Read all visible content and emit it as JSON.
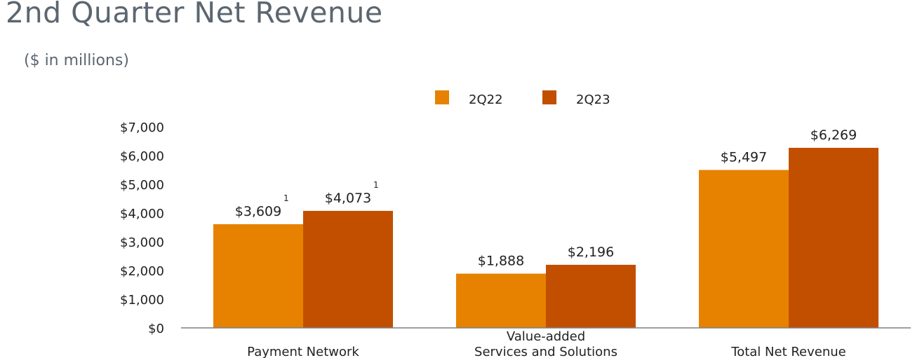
{
  "chart_data": {
    "type": "bar",
    "title": "2nd Quarter Net Revenue",
    "subtitle": "($ in millions)",
    "categories": [
      "Payment Network",
      "Value-added\nServices and Solutions",
      "Total Net Revenue"
    ],
    "series": [
      {
        "name": "2Q22",
        "values": [
          3609,
          1888,
          5497
        ],
        "color": "#E68200"
      },
      {
        "name": "2Q23",
        "values": [
          4073,
          2196,
          6269
        ],
        "color": "#C24F00"
      }
    ],
    "data_labels": [
      [
        "$3,609",
        "$1,888",
        "$5,497"
      ],
      [
        "$4,073",
        "$2,196",
        "$6,269"
      ]
    ],
    "footnotes": [
      [
        "1",
        "",
        ""
      ],
      [
        "1",
        "",
        ""
      ]
    ],
    "ylim": [
      0,
      7000
    ],
    "yticks": [
      0,
      1000,
      2000,
      3000,
      4000,
      5000,
      6000,
      7000
    ],
    "ytick_labels": [
      "$0",
      "$1,000",
      "$2,000",
      "$3,000",
      "$4,000",
      "$5,000",
      "$6,000",
      "$7,000"
    ],
    "legend_position": "top-center",
    "grid": false
  }
}
